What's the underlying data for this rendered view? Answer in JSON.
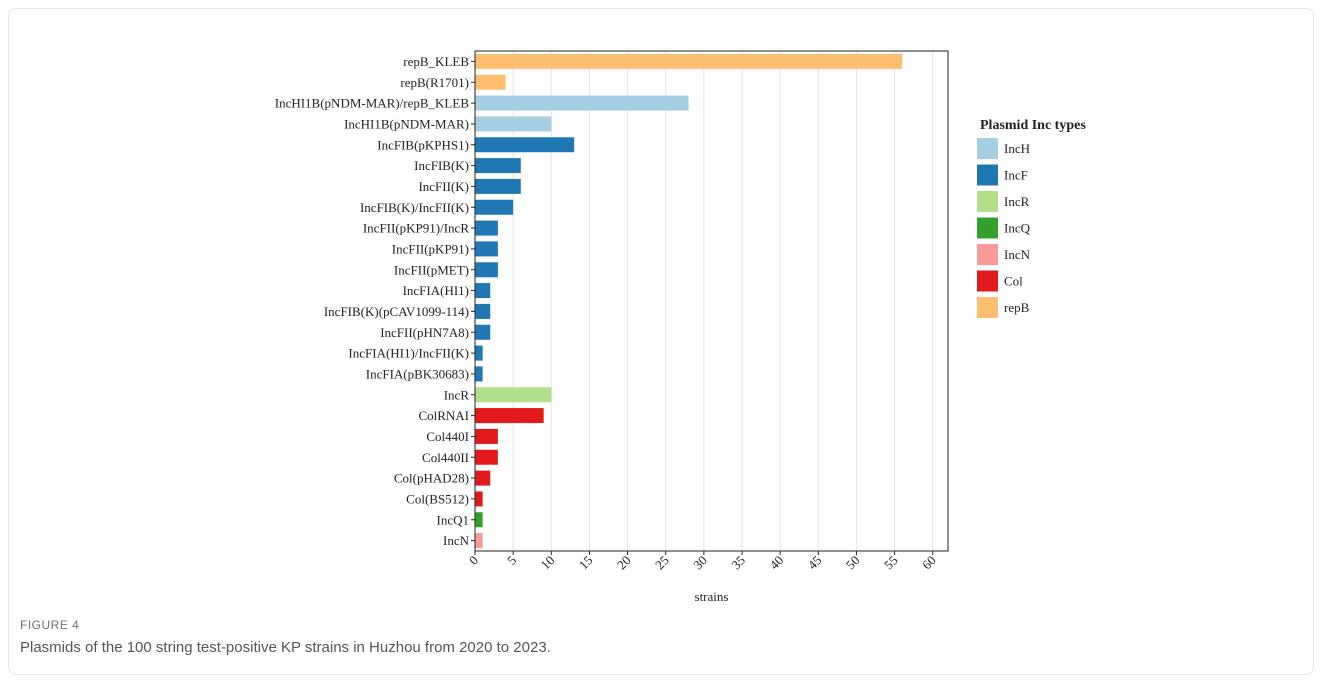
{
  "figure": {
    "label": "FIGURE 4",
    "caption": "Plasmids of the 100 string test-positive KP strains in Huzhou from 2020 to 2023."
  },
  "chart_data": {
    "type": "bar",
    "orientation": "horizontal",
    "xlabel": "strains",
    "ylabel": "",
    "xlim": [
      0,
      62
    ],
    "xticks": [
      0,
      5,
      10,
      15,
      20,
      25,
      30,
      35,
      40,
      45,
      50,
      55,
      60
    ],
    "grid": "vertical gridlines",
    "legend": {
      "title": "Plasmid Inc types",
      "position": "right",
      "items": [
        {
          "name": "IncH",
          "color": "#a6cee3"
        },
        {
          "name": "IncF",
          "color": "#1f78b4"
        },
        {
          "name": "IncR",
          "color": "#b2df8a"
        },
        {
          "name": "IncQ",
          "color": "#33a02c"
        },
        {
          "name": "IncN",
          "color": "#fb9a99"
        },
        {
          "name": "Col",
          "color": "#e31a1c"
        },
        {
          "name": "repB",
          "color": "#fdbf6f"
        }
      ]
    },
    "bars": [
      {
        "label": "repB_KLEB",
        "value": 56,
        "group": "repB"
      },
      {
        "label": "repB(R1701)",
        "value": 4,
        "group": "repB"
      },
      {
        "label": "IncHI1B(pNDM-MAR)/repB_KLEB",
        "value": 28,
        "group": "IncH"
      },
      {
        "label": "IncHI1B(pNDM-MAR)",
        "value": 10,
        "group": "IncH"
      },
      {
        "label": "IncFIB(pKPHS1)",
        "value": 13,
        "group": "IncF"
      },
      {
        "label": "IncFIB(K)",
        "value": 6,
        "group": "IncF"
      },
      {
        "label": "IncFII(K)",
        "value": 6,
        "group": "IncF"
      },
      {
        "label": "IncFIB(K)/IncFII(K)",
        "value": 5,
        "group": "IncF"
      },
      {
        "label": "IncFII(pKP91)/IncR",
        "value": 3,
        "group": "IncF"
      },
      {
        "label": "IncFII(pKP91)",
        "value": 3,
        "group": "IncF"
      },
      {
        "label": "IncFII(pMET)",
        "value": 3,
        "group": "IncF"
      },
      {
        "label": "IncFIA(HI1)",
        "value": 2,
        "group": "IncF"
      },
      {
        "label": "IncFIB(K)(pCAV1099-114)",
        "value": 2,
        "group": "IncF"
      },
      {
        "label": "IncFII(pHN7A8)",
        "value": 2,
        "group": "IncF"
      },
      {
        "label": "IncFIA(HI1)/IncFII(K)",
        "value": 1,
        "group": "IncF"
      },
      {
        "label": "IncFIA(pBK30683)",
        "value": 1,
        "group": "IncF"
      },
      {
        "label": "IncR",
        "value": 10,
        "group": "IncR"
      },
      {
        "label": "ColRNAI",
        "value": 9,
        "group": "Col"
      },
      {
        "label": "Col440I",
        "value": 3,
        "group": "Col"
      },
      {
        "label": "Col440II",
        "value": 3,
        "group": "Col"
      },
      {
        "label": "Col(pHAD28)",
        "value": 2,
        "group": "Col"
      },
      {
        "label": "Col(BS512)",
        "value": 1,
        "group": "Col"
      },
      {
        "label": "IncQ1",
        "value": 1,
        "group": "IncQ"
      },
      {
        "label": "IncN",
        "value": 1,
        "group": "IncN"
      }
    ]
  }
}
